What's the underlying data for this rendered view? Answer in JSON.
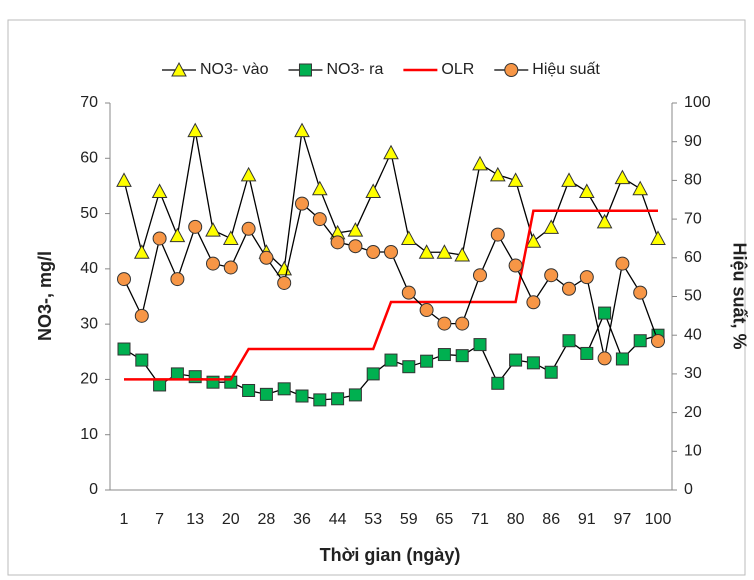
{
  "chart_data": {
    "type": "line",
    "categories": [
      "1",
      null,
      "7",
      null,
      "13",
      null,
      "20",
      null,
      "28",
      null,
      "36",
      null,
      "44",
      null,
      "53",
      null,
      "59",
      null,
      "65",
      null,
      "71",
      null,
      "80",
      null,
      "86",
      null,
      "91",
      null,
      "97",
      null,
      "100"
    ],
    "x_label": "Thời gian (ngày)",
    "y_label": "NO3-, mg/l",
    "y2_label": "Hiệu suất, %",
    "ylim": [
      0,
      70
    ],
    "yticks": [
      0,
      10,
      20,
      30,
      40,
      50,
      60,
      70
    ],
    "y2lim": [
      0,
      100
    ],
    "y2ticks": [
      0,
      10,
      20,
      30,
      40,
      50,
      60,
      70,
      80,
      90,
      100
    ],
    "grid": false,
    "series": [
      {
        "name": "NO3- vào",
        "color": "#ffff00",
        "line_color": "#000000",
        "marker": "triangle",
        "values": [
          56,
          43,
          54,
          46,
          65,
          47,
          45.5,
          57,
          43,
          40,
          65,
          54.5,
          46.5,
          47,
          54,
          61,
          45.5,
          43,
          43,
          42.5,
          59,
          57,
          56,
          45,
          47.5,
          56,
          54,
          48.5,
          56.5,
          54.5,
          45.5
        ]
      },
      {
        "name": "NO3- ra",
        "color": "#00b050",
        "line_color": "#000000",
        "marker": "square",
        "values": [
          25.5,
          23.5,
          19,
          21,
          20.5,
          19.5,
          19.5,
          18,
          17.3,
          18.3,
          17,
          16.3,
          16.5,
          17.2,
          21,
          23.5,
          22.3,
          23.3,
          24.5,
          24.3,
          26.3,
          19.3,
          23.5,
          23,
          21.3,
          27,
          24.7,
          32,
          23.7,
          27,
          28
        ]
      },
      {
        "name": "OLR",
        "color": "#ff0000",
        "line_color": "#ff0000",
        "marker": "none",
        "values": [
          20,
          20,
          20,
          20,
          20,
          20,
          20,
          25.5,
          25.5,
          25.5,
          25.5,
          25.5,
          25.5,
          25.5,
          25.5,
          34,
          34,
          34,
          34,
          34,
          34,
          34,
          34,
          50.5,
          50.5,
          50.5,
          50.5,
          50.5,
          50.5,
          50.5,
          50.5
        ]
      },
      {
        "name": "Hiệu suất",
        "color": "#f79646",
        "line_color": "#000000",
        "marker": "circle",
        "axis": "y2",
        "values": [
          54.5,
          45,
          65,
          54.5,
          68,
          58.5,
          57.5,
          67.5,
          60,
          53.5,
          74,
          70,
          64,
          63,
          61.5,
          61.5,
          51,
          46.5,
          43,
          43,
          55.5,
          66,
          58,
          48.5,
          55.5,
          52,
          55,
          34,
          58.5,
          51,
          38.5
        ]
      }
    ]
  }
}
